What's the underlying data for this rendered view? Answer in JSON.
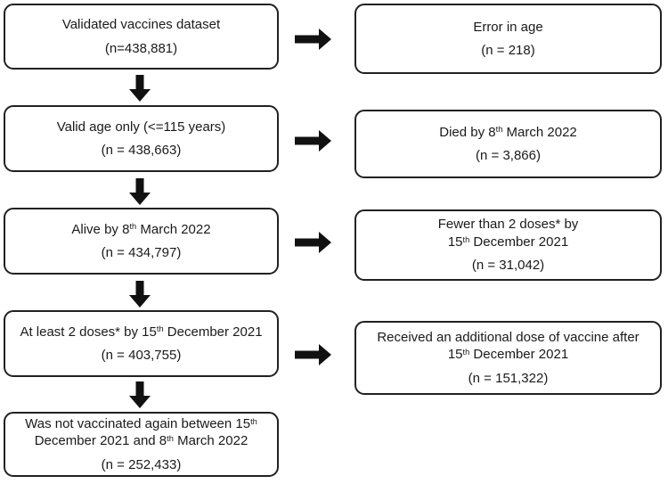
{
  "figure": {
    "type": "flowchart",
    "description": "Vaccination dataset inclusion/exclusion flow diagram",
    "colors": {
      "background": "#ffffff",
      "box_border": "#212121",
      "text": "#1a1a1a",
      "arrow": "#111111"
    },
    "main": [
      {
        "name": "validated-dataset",
        "lines": [
          [
            {
              "t": "Validated vaccines dataset"
            }
          ]
        ],
        "n": "(n=438,881)"
      },
      {
        "name": "valid-age",
        "lines": [
          [
            {
              "t": "Valid age only (<=115 years)"
            }
          ]
        ],
        "n": "(n = 438,663)"
      },
      {
        "name": "alive",
        "lines": [
          [
            {
              "t": "Alive by 8"
            },
            {
              "t": "th",
              "sup": true
            },
            {
              "t": " March 2022"
            }
          ]
        ],
        "n": "(n = 434,797)"
      },
      {
        "name": "at-least-2-doses",
        "lines": [
          [
            {
              "t": "At least 2 doses* by 15"
            },
            {
              "t": "th",
              "sup": true
            },
            {
              "t": " December 2021"
            }
          ]
        ],
        "n": "(n = 403,755)"
      },
      {
        "name": "not-vaccinated-again",
        "lines": [
          [
            {
              "t": "Was not vaccinated again between 15"
            },
            {
              "t": "th",
              "sup": true
            }
          ],
          [
            {
              "t": "December 2021 and 8"
            },
            {
              "t": "th",
              "sup": true
            },
            {
              "t": " March 2022"
            }
          ]
        ],
        "n": "(n = 252,433)"
      }
    ],
    "exclusions": [
      {
        "name": "error-in-age",
        "lines": [
          [
            {
              "t": "Error in age"
            }
          ]
        ],
        "n": "(n = 218)"
      },
      {
        "name": "died",
        "lines": [
          [
            {
              "t": "Died by 8"
            },
            {
              "t": "th",
              "sup": true
            },
            {
              "t": " March 2022"
            }
          ]
        ],
        "n": "(n = 3,866)"
      },
      {
        "name": "fewer-than-2-doses",
        "lines": [
          [
            {
              "t": "Fewer than 2 doses* by"
            }
          ],
          [
            {
              "t": "15"
            },
            {
              "t": "th",
              "sup": true
            },
            {
              "t": " December 2021"
            }
          ]
        ],
        "n": "(n = 31,042)"
      },
      {
        "name": "additional-dose",
        "lines": [
          [
            {
              "t": "Received an additional dose of vaccine after"
            }
          ],
          [
            {
              "t": "15"
            },
            {
              "t": "th",
              "sup": true
            },
            {
              "t": " December 2021"
            }
          ]
        ],
        "n": "(n = 151,322)"
      }
    ]
  }
}
